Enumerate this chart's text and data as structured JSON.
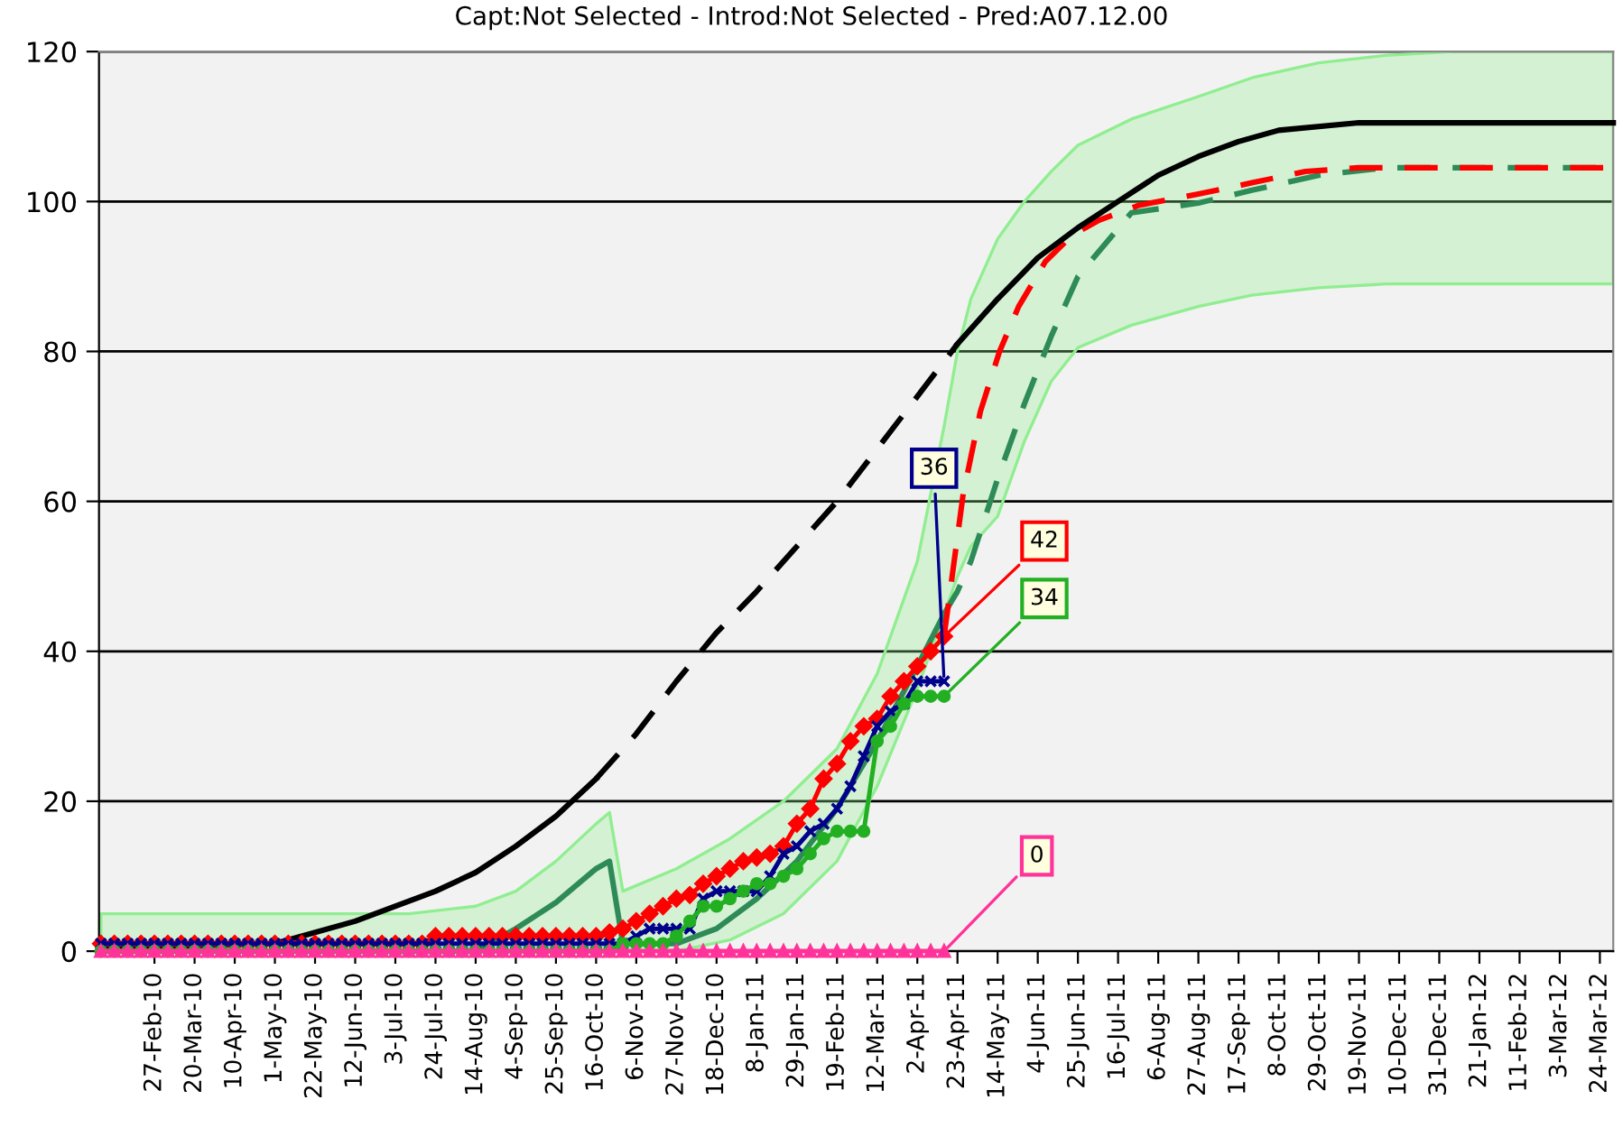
{
  "chart_data": {
    "type": "line",
    "title": "Capt:Not Selected - Introd:Not Selected - Pred:A07.12.00",
    "x": [
      "2010-01-30",
      "2010-02-06",
      "2010-02-13",
      "2010-02-20",
      "2010-02-27",
      "2010-03-06",
      "2010-03-13",
      "2010-03-20",
      "2010-03-27",
      "2010-04-03",
      "2010-04-10",
      "2010-04-17",
      "2010-04-24",
      "2010-05-01",
      "2010-05-08",
      "2010-05-15",
      "2010-05-22",
      "2010-05-29",
      "2010-06-05",
      "2010-06-12",
      "2010-06-19",
      "2010-06-26",
      "2010-07-03",
      "2010-07-10",
      "2010-07-17",
      "2010-07-24",
      "2010-07-31",
      "2010-08-07",
      "2010-08-14",
      "2010-08-21",
      "2010-08-28",
      "2010-09-04",
      "2010-09-11",
      "2010-09-18",
      "2010-09-25",
      "2010-10-02",
      "2010-10-09",
      "2010-10-16",
      "2010-10-23",
      "2010-10-30",
      "2010-11-06",
      "2010-11-13",
      "2010-11-20",
      "2010-11-27",
      "2010-12-04",
      "2010-12-11",
      "2010-12-18",
      "2010-12-25",
      "2011-01-01",
      "2011-01-08",
      "2011-01-15",
      "2011-01-22",
      "2011-01-29",
      "2011-02-05",
      "2011-02-12",
      "2011-02-19",
      "2011-02-26",
      "2011-03-05",
      "2011-03-12",
      "2011-03-19",
      "2011-03-26",
      "2011-04-02",
      "2011-04-09",
      "2011-04-16"
    ],
    "series": [
      {
        "color": "#ff0000",
        "marker": "diamond",
        "values": [
          1,
          1,
          1,
          1,
          1,
          1,
          1,
          1,
          1,
          1,
          1,
          1,
          1,
          1,
          1,
          1,
          1,
          1,
          1,
          1,
          1,
          1,
          1,
          1,
          1,
          2,
          2,
          2,
          2,
          2,
          2,
          2,
          2,
          2,
          2,
          2,
          2,
          2,
          2.5,
          3,
          4,
          5,
          6,
          7,
          7.5,
          9,
          10,
          11,
          12,
          12.5,
          13,
          14,
          17,
          19,
          23,
          25,
          28,
          30,
          31,
          34,
          36,
          38,
          40,
          42
        ]
      },
      {
        "color": "#00008b",
        "marker": "cross",
        "values": [
          1,
          1,
          1,
          1,
          1,
          1,
          1,
          1,
          1,
          1,
          1,
          1,
          1,
          1,
          1,
          1,
          1,
          1,
          1,
          1,
          1,
          1,
          1,
          1,
          1,
          1,
          1,
          1,
          1,
          1,
          1,
          1,
          1,
          1,
          1,
          1,
          1,
          1,
          1,
          1,
          2,
          3,
          3,
          3,
          3,
          7,
          8,
          8,
          8,
          8,
          10,
          13,
          14,
          16,
          17,
          19,
          22,
          26,
          30,
          32,
          33,
          36,
          36,
          36
        ]
      },
      {
        "color": "#22b022",
        "marker": "circle",
        "values": [
          0,
          0,
          0,
          0,
          0,
          0,
          0,
          0,
          0,
          0,
          0,
          0,
          0,
          0,
          0,
          0,
          0,
          0,
          0,
          0,
          0,
          0,
          0,
          0,
          0,
          0,
          0,
          0,
          0,
          0,
          0,
          0,
          0,
          0,
          0,
          0,
          0,
          0,
          0,
          1,
          1,
          1,
          1,
          2,
          4,
          6,
          6,
          7,
          8,
          9,
          9,
          10,
          11,
          13,
          15,
          16,
          16,
          16,
          28,
          30,
          33,
          34,
          34,
          34
        ]
      },
      {
        "color": "#ff3399",
        "marker": "triangle",
        "values": [
          0,
          0,
          0,
          0,
          0,
          0,
          0,
          0,
          0,
          0,
          0,
          0,
          0,
          0,
          0,
          0,
          0,
          0,
          0,
          0,
          0,
          0,
          0,
          0,
          0,
          0,
          0,
          0,
          0,
          0,
          0,
          0,
          0,
          0,
          0,
          0,
          0,
          0,
          0,
          0,
          0,
          0,
          0,
          0,
          0,
          0,
          0,
          0,
          0,
          0,
          0,
          0,
          0,
          0,
          0,
          0,
          0,
          0,
          0,
          0,
          0,
          0,
          0,
          0
        ]
      },
      {
        "color": "#2e8b57",
        "line_style": "dashed",
        "values": [
          null,
          null,
          null,
          null,
          null,
          null,
          null,
          null,
          null,
          null,
          null,
          null,
          null,
          null,
          45,
          48,
          52,
          63,
          73,
          82,
          90,
          98.5,
          99.8,
          101.5,
          103.5,
          104.5,
          104.5,
          104.5
        ],
        "x": [
          "2010-01-30",
          "2010-07-10",
          "2010-08-14",
          "2010-09-04",
          "2010-09-25",
          "2010-10-16",
          "2010-10-23",
          "2010-10-30",
          "2010-11-27",
          "2010-12-25",
          "2011-01-22",
          "2011-02-19",
          "2011-03-12",
          "2011-04-02",
          "2011-04-16",
          "2011-04-23",
          "2011-04-30",
          "2011-05-14",
          "2011-05-28",
          "2011-06-11",
          "2011-06-25",
          "2011-07-23",
          "2011-08-27",
          "2011-09-24",
          "2011-10-29",
          "2011-12-03",
          "2012-01-07",
          "2012-03-31"
        ],
        "upper": [
          5,
          5,
          6,
          8,
          12,
          17,
          18.5,
          8,
          11,
          15,
          20,
          27,
          37,
          52,
          70,
          80,
          87,
          95,
          100,
          104,
          107.5,
          111,
          114,
          116.5,
          118.5,
          119.5,
          120,
          120
        ],
        "lower": [
          0,
          0,
          0,
          0,
          0,
          0,
          0,
          0,
          0,
          1.5,
          5,
          12,
          22,
          35,
          45,
          50,
          54,
          58,
          68,
          76,
          80.5,
          83.5,
          86,
          87.5,
          88.5,
          89,
          89,
          89
        ]
      },
      {
        "color": "#2e8b57",
        "line_style": "solid",
        "x": [
          "2010-01-30",
          "2010-08-14",
          "2010-09-04",
          "2010-09-25",
          "2010-10-16",
          "2010-10-23",
          "2010-10-30",
          "2010-11-27",
          "2010-12-18",
          "2011-01-08",
          "2011-01-29",
          "2011-02-19",
          "2011-03-12",
          "2011-04-02",
          "2011-04-16"
        ],
        "values": [
          0,
          0,
          3,
          6.5,
          11,
          12,
          1,
          1,
          3,
          7,
          12,
          19,
          28,
          38,
          45
        ]
      },
      {
        "color": "#ff0000",
        "line_style": "dashed",
        "x": [
          "2011-04-16",
          "2011-04-26",
          "2011-05-05",
          "2011-05-15",
          "2011-05-25",
          "2011-06-08",
          "2011-06-22",
          "2011-07-06",
          "2011-07-27",
          "2011-08-27",
          "2011-09-24",
          "2011-10-22",
          "2011-11-19",
          "2012-03-31"
        ],
        "values": [
          42,
          61,
          72,
          80,
          86,
          92,
          95.5,
          97.5,
          99.5,
          101,
          102.5,
          104,
          104.5,
          104.5
        ]
      },
      {
        "color": "#000000",
        "line_style": "solid",
        "x": [
          "2010-01-30",
          "2010-05-01",
          "2010-06-12",
          "2010-07-24",
          "2010-08-14",
          "2010-09-04",
          "2010-09-25",
          "2010-10-16"
        ],
        "values": [
          0.5,
          1,
          4,
          8,
          10.5,
          14,
          18,
          23
        ]
      },
      {
        "color": "#000000",
        "line_style": "dashed",
        "x": [
          "2010-10-16",
          "2010-11-06",
          "2010-11-27",
          "2010-12-18",
          "2011-01-08",
          "2011-01-29",
          "2011-02-19",
          "2011-03-12",
          "2011-04-02",
          "2011-04-23"
        ],
        "values": [
          23,
          29,
          36,
          42.5,
          48,
          54,
          60,
          67,
          74,
          81
        ]
      },
      {
        "color": "#000000",
        "line_style": "solid",
        "x": [
          "2011-04-23",
          "2011-05-14",
          "2011-06-04",
          "2011-06-25",
          "2011-07-16",
          "2011-08-06",
          "2011-08-27",
          "2011-09-17",
          "2011-10-08",
          "2011-11-19",
          "2012-03-31"
        ],
        "values": [
          81,
          87,
          92.5,
          96.5,
          100,
          103.5,
          106,
          108,
          109.5,
          110.5,
          110.5
        ]
      }
    ],
    "annotations": [
      {
        "text": "42",
        "x": "2011-04-16",
        "y": 42
      },
      {
        "text": "36",
        "x": "2011-04-16",
        "y": 36
      },
      {
        "text": "34",
        "x": "2011-04-16",
        "y": 34
      },
      {
        "text": "0",
        "x": "2011-04-16",
        "y": 0
      }
    ],
    "xlim": [
      "2010-01-29",
      "2012-03-31"
    ],
    "xticks": [
      {
        "value": "2010-02-27",
        "label": "27-Feb-10"
      },
      {
        "value": "2010-03-20",
        "label": "20-Mar-10"
      },
      {
        "value": "2010-04-10",
        "label": "10-Apr-10"
      },
      {
        "value": "2010-05-01",
        "label": "1-May-10"
      },
      {
        "value": "2010-05-22",
        "label": "22-May-10"
      },
      {
        "value": "2010-06-12",
        "label": "12-Jun-10"
      },
      {
        "value": "2010-07-03",
        "label": "3-Jul-10"
      },
      {
        "value": "2010-07-24",
        "label": "24-Jul-10"
      },
      {
        "value": "2010-08-14",
        "label": "14-Aug-10"
      },
      {
        "value": "2010-09-04",
        "label": "4-Sep-10"
      },
      {
        "value": "2010-09-25",
        "label": "25-Sep-10"
      },
      {
        "value": "2010-10-16",
        "label": "16-Oct-10"
      },
      {
        "value": "2010-11-06",
        "label": "6-Nov-10"
      },
      {
        "value": "2010-11-27",
        "label": "27-Nov-10"
      },
      {
        "value": "2010-12-18",
        "label": "18-Dec-10"
      },
      {
        "value": "2011-01-08",
        "label": "8-Jan-11"
      },
      {
        "value": "2011-01-29",
        "label": "29-Jan-11"
      },
      {
        "value": "2011-02-19",
        "label": "19-Feb-11"
      },
      {
        "value": "2011-03-12",
        "label": "12-Mar-11"
      },
      {
        "value": "2011-04-02",
        "label": "2-Apr-11"
      },
      {
        "value": "2011-04-23",
        "label": "23-Apr-11"
      },
      {
        "value": "2011-05-14",
        "label": "14-May-11"
      },
      {
        "value": "2011-06-04",
        "label": "4-Jun-11"
      },
      {
        "value": "2011-06-25",
        "label": "25-Jun-11"
      },
      {
        "value": "2011-07-16",
        "label": "16-Jul-11"
      },
      {
        "value": "2011-08-06",
        "label": "6-Aug-11"
      },
      {
        "value": "2011-08-27",
        "label": "27-Aug-11"
      },
      {
        "value": "2011-09-17",
        "label": "17-Sep-11"
      },
      {
        "value": "2011-10-08",
        "label": "8-Oct-11"
      },
      {
        "value": "2011-10-29",
        "label": "29-Oct-11"
      },
      {
        "value": "2011-11-19",
        "label": "19-Nov-11"
      },
      {
        "value": "2011-12-10",
        "label": "10-Dec-11"
      },
      {
        "value": "2011-12-31",
        "label": "31-Dec-11"
      },
      {
        "value": "2012-01-21",
        "label": "21-Jan-12"
      },
      {
        "value": "2012-02-11",
        "label": "11-Feb-12"
      },
      {
        "value": "2012-03-03",
        "label": "3-Mar-12"
      },
      {
        "value": "2012-03-24",
        "label": "24-Mar-12"
      }
    ],
    "ylim": [
      0,
      120
    ],
    "yticks": [
      0,
      20,
      40,
      60,
      80,
      100,
      120
    ],
    "grid": "y",
    "legend": false
  }
}
